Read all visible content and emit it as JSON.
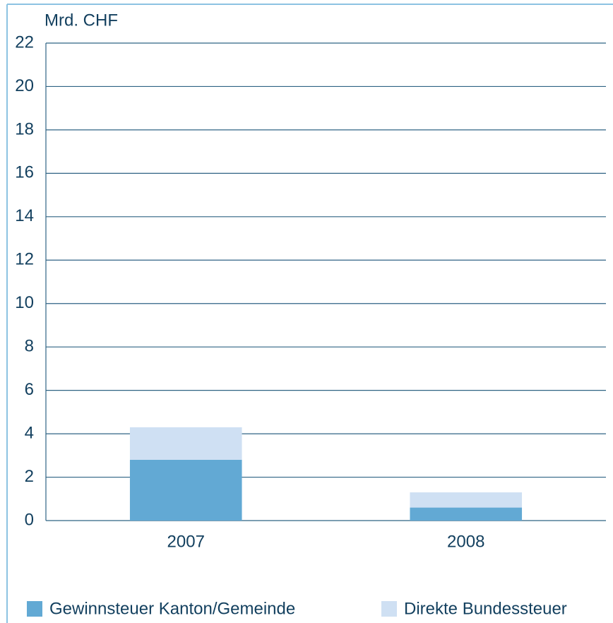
{
  "chart_data": {
    "type": "stacked_bar",
    "y_axis_label": "Mrd. CHF",
    "categories": [
      "2007",
      "2008"
    ],
    "series": [
      {
        "name": "Gewinnsteuer Kanton/Gemeinde",
        "color": "#62a9d4",
        "values": [
          2.8,
          0.6
        ]
      },
      {
        "name": "Direkte Bundessteuer",
        "color": "#cfe0f3",
        "values": [
          1.5,
          0.7
        ]
      }
    ],
    "ylim": [
      0,
      22
    ],
    "yticks": [
      0,
      2,
      4,
      6,
      8,
      10,
      12,
      14,
      16,
      18,
      20,
      22
    ],
    "grid": true
  }
}
